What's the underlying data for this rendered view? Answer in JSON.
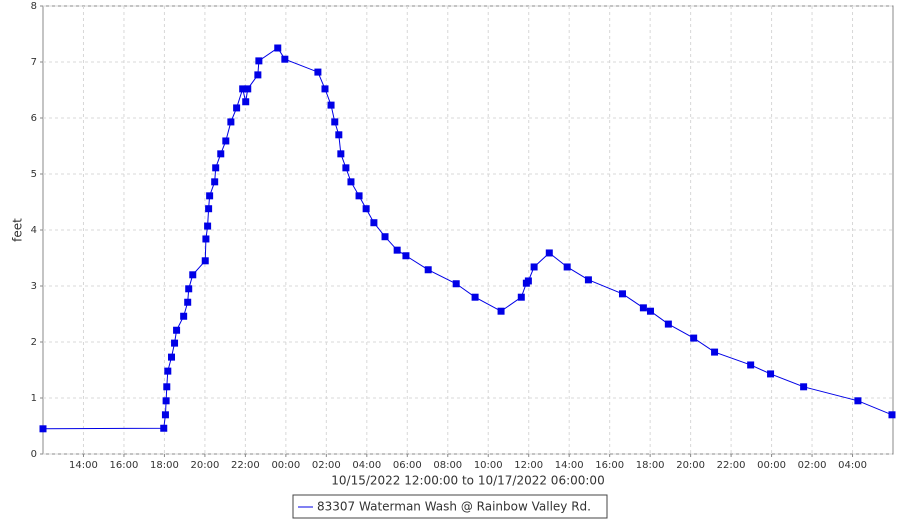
{
  "chart_data": {
    "type": "line",
    "ylabel": "feet",
    "xlabel": "10/15/2022 12:00:00 to 10/17/2022 06:00:00",
    "xlim": [
      "10/15/2022 12:00",
      "10/17/2022 06:00"
    ],
    "ylim": [
      0,
      8
    ],
    "yticks": [
      0,
      1,
      2,
      3,
      4,
      5,
      6,
      7,
      8
    ],
    "xticks": [
      {
        "value": "10/15/2022 14:00",
        "label": "14:00"
      },
      {
        "value": "10/15/2022 16:00",
        "label": "16:00"
      },
      {
        "value": "10/15/2022 18:00",
        "label": "18:00"
      },
      {
        "value": "10/15/2022 20:00",
        "label": "20:00"
      },
      {
        "value": "10/15/2022 22:00",
        "label": "22:00"
      },
      {
        "value": "10/16/2022 00:00",
        "label": "00:00"
      },
      {
        "value": "10/16/2022 02:00",
        "label": "02:00"
      },
      {
        "value": "10/16/2022 04:00",
        "label": "04:00"
      },
      {
        "value": "10/16/2022 06:00",
        "label": "06:00"
      },
      {
        "value": "10/16/2022 08:00",
        "label": "08:00"
      },
      {
        "value": "10/16/2022 10:00",
        "label": "10:00"
      },
      {
        "value": "10/16/2022 12:00",
        "label": "12:00"
      },
      {
        "value": "10/16/2022 14:00",
        "label": "14:00"
      },
      {
        "value": "10/16/2022 16:00",
        "label": "16:00"
      },
      {
        "value": "10/16/2022 18:00",
        "label": "18:00"
      },
      {
        "value": "10/16/2022 20:00",
        "label": "20:00"
      },
      {
        "value": "10/16/2022 22:00",
        "label": "22:00"
      },
      {
        "value": "10/17/2022 00:00",
        "label": "00:00"
      },
      {
        "value": "10/17/2022 02:00",
        "label": "02:00"
      },
      {
        "value": "10/17/2022 04:00",
        "label": "04:00"
      }
    ],
    "grid": true,
    "x": [
      "10/15/2022 12:00",
      "10/15/2022 17:58",
      "10/15/2022 18:03",
      "10/15/2022 18:05",
      "10/15/2022 18:07",
      "10/15/2022 18:10",
      "10/15/2022 18:21",
      "10/15/2022 18:30",
      "10/15/2022 18:36",
      "10/15/2022 18:57",
      "10/15/2022 19:09",
      "10/15/2022 19:12",
      "10/15/2022 19:24",
      "10/15/2022 20:01",
      "10/15/2022 20:03",
      "10/15/2022 20:08",
      "10/15/2022 20:11",
      "10/15/2022 20:14",
      "10/15/2022 20:29",
      "10/15/2022 20:32",
      "10/15/2022 20:47",
      "10/15/2022 21:02",
      "10/15/2022 21:17",
      "10/15/2022 21:34",
      "10/15/2022 21:52",
      "10/15/2022 22:01",
      "10/15/2022 22:07",
      "10/15/2022 22:37",
      "10/15/2022 22:40",
      "10/15/2022 23:36",
      "10/15/2022 23:57",
      "10/16/2022 01:35",
      "10/16/2022 01:56",
      "10/16/2022 02:14",
      "10/16/2022 02:25",
      "10/16/2022 02:37",
      "10/16/2022 02:43",
      "10/16/2022 02:58",
      "10/16/2022 03:13",
      "10/16/2022 03:37",
      "10/16/2022 03:58",
      "10/16/2022 04:21",
      "10/16/2022 04:54",
      "10/16/2022 05:30",
      "10/16/2022 05:56",
      "10/16/2022 07:02",
      "10/16/2022 08:25",
      "10/16/2022 09:21",
      "10/16/2022 10:38",
      "10/16/2022 11:38",
      "10/16/2022 11:53",
      "10/16/2022 11:59",
      "10/16/2022 12:16",
      "10/16/2022 13:01",
      "10/16/2022 13:54",
      "10/16/2022 14:57",
      "10/16/2022 16:38",
      "10/16/2022 17:40",
      "10/16/2022 18:01",
      "10/16/2022 18:54",
      "10/16/2022 20:09",
      "10/16/2022 21:11",
      "10/16/2022 22:58",
      "10/16/2022 23:57",
      "10/17/2022 01:35",
      "10/17/2022 04:16",
      "10/17/2022 05:57"
    ],
    "series": [
      {
        "name": "83307 Waterman Wash @ Rainbow Valley Rd.",
        "color": "#0000e6",
        "values": [
          0.45,
          0.46,
          0.7,
          0.95,
          1.2,
          1.48,
          1.73,
          1.98,
          2.21,
          2.46,
          2.71,
          2.95,
          3.2,
          3.45,
          3.84,
          4.07,
          4.38,
          4.61,
          4.86,
          5.11,
          5.36,
          5.59,
          5.93,
          6.18,
          6.52,
          6.29,
          6.52,
          6.77,
          7.02,
          7.25,
          7.05,
          6.82,
          6.52,
          6.23,
          5.93,
          5.7,
          5.36,
          5.11,
          4.86,
          4.61,
          4.38,
          4.13,
          3.88,
          3.64,
          3.54,
          3.29,
          3.04,
          2.8,
          2.55,
          2.8,
          3.05,
          3.09,
          3.34,
          3.59,
          3.34,
          3.11,
          2.86,
          2.61,
          2.55,
          2.32,
          2.07,
          1.82,
          1.59,
          1.43,
          1.2,
          0.95,
          0.7
        ]
      }
    ]
  }
}
